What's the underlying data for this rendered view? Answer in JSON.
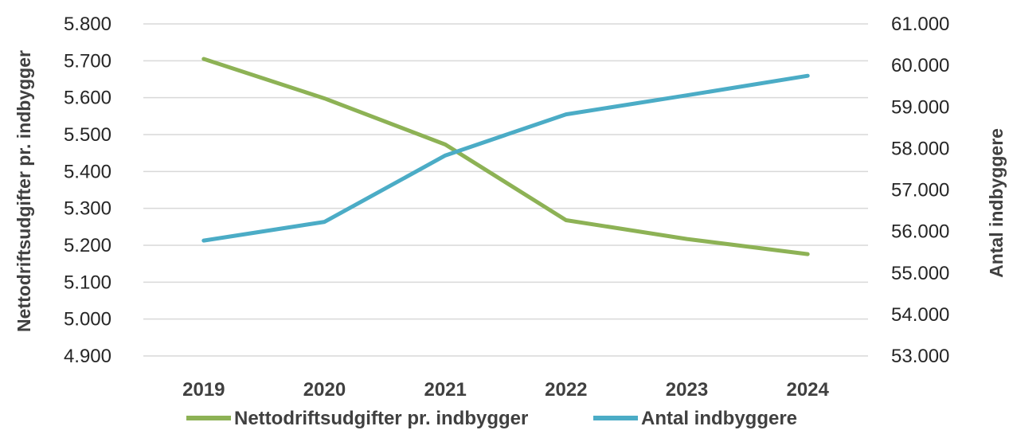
{
  "chart_data": {
    "type": "line",
    "categories": [
      "2019",
      "2020",
      "2021",
      "2022",
      "2023",
      "2024"
    ],
    "series": [
      {
        "name": "Nettodriftsudgifter pr. indbygger",
        "axis": "left",
        "color": "#8DB255",
        "values": [
          5705,
          5598,
          5473,
          5268,
          5217,
          5176
        ]
      },
      {
        "name": "Antal indbyggere",
        "axis": "right",
        "color": "#4BACC6",
        "values": [
          55780,
          56230,
          57830,
          58820,
          59280,
          59750
        ]
      }
    ],
    "y_left": {
      "label": "Nettodriftsudgifter pr. indbygger",
      "range": [
        4900,
        5800
      ],
      "ticks": [
        "4.900",
        "5.000",
        "5.100",
        "5.200",
        "5.300",
        "5.400",
        "5.500",
        "5.600",
        "5.700",
        "5.800"
      ]
    },
    "y_right": {
      "label": "Antal indbyggere",
      "range": [
        53000,
        61000
      ],
      "ticks": [
        "53.000",
        "54.000",
        "55.000",
        "56.000",
        "57.000",
        "58.000",
        "59.000",
        "60.000",
        "61.000"
      ]
    },
    "grid": true,
    "legend_position": "bottom"
  }
}
